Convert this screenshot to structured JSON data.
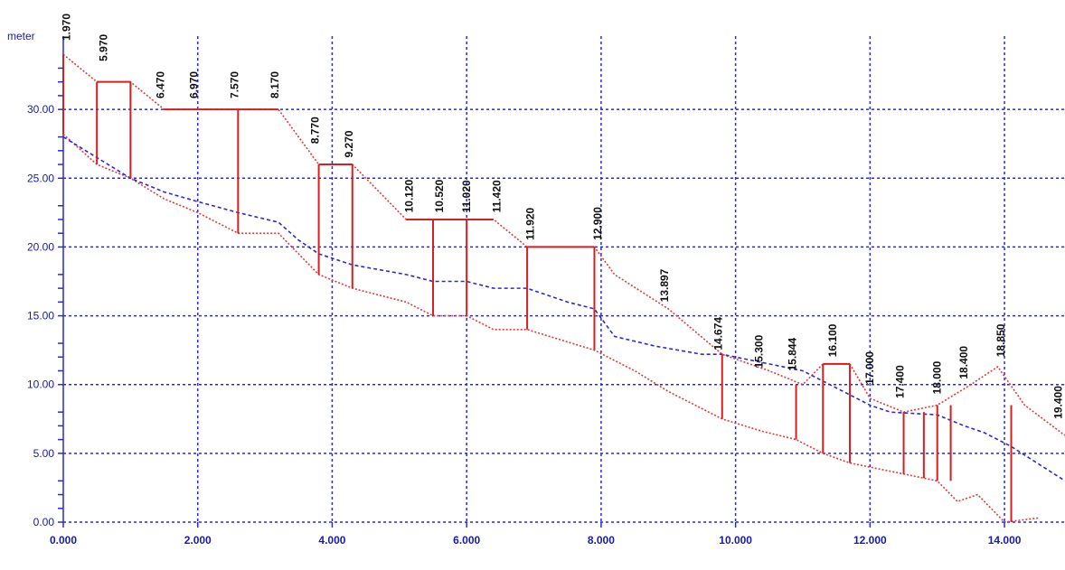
{
  "chart_data": {
    "type": "line",
    "y_unit_label": "meter",
    "xlim": [
      0,
      14.9
    ],
    "ylim": [
      0,
      35
    ],
    "x_ticks": [
      {
        "value": 0,
        "label": "0.000"
      },
      {
        "value": 2,
        "label": "2.000"
      },
      {
        "value": 4,
        "label": "4.000"
      },
      {
        "value": 6,
        "label": "6.000"
      },
      {
        "value": 8,
        "label": "8.000"
      },
      {
        "value": 10,
        "label": "10.000"
      },
      {
        "value": 12,
        "label": "12.000"
      },
      {
        "value": 14,
        "label": "14.000"
      }
    ],
    "y_ticks": [
      {
        "value": 0,
        "label": "0.00"
      },
      {
        "value": 5,
        "label": "5.00"
      },
      {
        "value": 10,
        "label": "10.00"
      },
      {
        "value": 15,
        "label": "15.00"
      },
      {
        "value": 20,
        "label": "20.00"
      },
      {
        "value": 25,
        "label": "25.00"
      },
      {
        "value": 30,
        "label": "30.00"
      }
    ],
    "y_minor_ticks": [
      1,
      2,
      3,
      6,
      7,
      8,
      11,
      12,
      13,
      16,
      17,
      18,
      21,
      22,
      23,
      26,
      27,
      28,
      31,
      32,
      33
    ],
    "grid": "dotted",
    "colors": {
      "grid": "#2a2ad4",
      "series_upper": "#e03a3a",
      "series_lower": "#e03a3a",
      "series_ground": "#2a2ad4",
      "walls": "#d42020",
      "label": "#111111"
    },
    "series": [
      {
        "values": [
          [
            0,
            34.0
          ],
          [
            0.5,
            32.0
          ],
          [
            1.0,
            32.0
          ],
          [
            1.5,
            30.0
          ],
          [
            2.0,
            30.0
          ],
          [
            2.6,
            30.0
          ],
          [
            3.2,
            30.0
          ],
          [
            3.8,
            26.0
          ],
          [
            4.3,
            26.0
          ],
          [
            5.1,
            22.0
          ],
          [
            5.5,
            22.0
          ],
          [
            6.0,
            22.0
          ],
          [
            6.4,
            22.0
          ],
          [
            6.9,
            20.0
          ],
          [
            7.9,
            20.0
          ],
          [
            8.2,
            18.0
          ],
          [
            9.0,
            15.5
          ],
          [
            9.8,
            12.2
          ],
          [
            10.5,
            11.0
          ],
          [
            11.0,
            10.0
          ],
          [
            11.3,
            11.5
          ],
          [
            11.7,
            11.5
          ],
          [
            12.0,
            9.0
          ],
          [
            12.5,
            8.0
          ],
          [
            13.0,
            8.5
          ],
          [
            13.5,
            10.0
          ],
          [
            13.9,
            11.3
          ],
          [
            14.3,
            8.5
          ],
          [
            14.9,
            6.3
          ]
        ]
      },
      {
        "values": [
          [
            0,
            28.2
          ],
          [
            0.5,
            26.0
          ],
          [
            1.0,
            25.0
          ],
          [
            1.5,
            23.5
          ],
          [
            2.0,
            22.5
          ],
          [
            2.6,
            21.0
          ],
          [
            3.2,
            21.0
          ],
          [
            3.8,
            18.0
          ],
          [
            4.3,
            17.0
          ],
          [
            5.1,
            16.0
          ],
          [
            5.5,
            15.0
          ],
          [
            6.0,
            15.0
          ],
          [
            6.4,
            14.0
          ],
          [
            6.9,
            14.0
          ],
          [
            7.9,
            12.5
          ],
          [
            8.5,
            11.0
          ],
          [
            9.0,
            9.5
          ],
          [
            9.8,
            7.5
          ],
          [
            10.4,
            6.6
          ],
          [
            10.9,
            6.0
          ],
          [
            11.3,
            5.0
          ],
          [
            11.7,
            4.3
          ],
          [
            12.0,
            4.0
          ],
          [
            12.5,
            3.5
          ],
          [
            13.0,
            3.0
          ],
          [
            13.3,
            1.5
          ],
          [
            13.6,
            2.0
          ],
          [
            14.0,
            0
          ],
          [
            14.5,
            0.3
          ]
        ]
      },
      {
        "values": [
          [
            0,
            28.0
          ],
          [
            1.0,
            25.0
          ],
          [
            1.5,
            24.0
          ],
          [
            2.0,
            23.3
          ],
          [
            2.6,
            22.5
          ],
          [
            3.2,
            21.8
          ],
          [
            3.5,
            20.5
          ],
          [
            3.8,
            19.5
          ],
          [
            4.3,
            18.7
          ],
          [
            5.1,
            18.0
          ],
          [
            5.5,
            17.5
          ],
          [
            6.0,
            17.5
          ],
          [
            6.4,
            17.0
          ],
          [
            6.9,
            17.0
          ],
          [
            7.5,
            16.0
          ],
          [
            7.9,
            15.5
          ],
          [
            8.2,
            13.5
          ],
          [
            8.8,
            12.8
          ],
          [
            9.5,
            12.2
          ],
          [
            9.8,
            12.2
          ],
          [
            10.5,
            11.5
          ],
          [
            11.0,
            11.0
          ],
          [
            11.6,
            9.5
          ],
          [
            12.0,
            8.5
          ],
          [
            12.3,
            8.0
          ],
          [
            13.0,
            7.8
          ],
          [
            13.4,
            7.0
          ],
          [
            13.7,
            6.5
          ],
          [
            14.1,
            5.5
          ],
          [
            14.9,
            3.0
          ]
        ]
      }
    ],
    "walls": [
      {
        "x": 0.0,
        "bottom": 28.2,
        "top": 34.0
      },
      {
        "x": 0.5,
        "bottom": 26.0,
        "top": 32.0
      },
      {
        "x": 1.0,
        "bottom": 25.0,
        "top": 32.0
      },
      {
        "x": 2.6,
        "bottom": 21.0,
        "top": 30.0
      },
      {
        "x": 3.8,
        "bottom": 18.0,
        "top": 26.0
      },
      {
        "x": 4.3,
        "bottom": 17.0,
        "top": 26.0
      },
      {
        "x": 5.5,
        "bottom": 15.0,
        "top": 22.0
      },
      {
        "x": 6.0,
        "bottom": 15.0,
        "top": 22.0
      },
      {
        "x": 6.9,
        "bottom": 14.0,
        "top": 20.0
      },
      {
        "x": 7.9,
        "bottom": 12.5,
        "top": 20.0
      },
      {
        "x": 9.8,
        "bottom": 7.5,
        "top": 12.2
      },
      {
        "x": 10.9,
        "bottom": 6.0,
        "top": 10.0
      },
      {
        "x": 11.3,
        "bottom": 5.0,
        "top": 11.5
      },
      {
        "x": 11.7,
        "bottom": 4.3,
        "top": 11.5
      },
      {
        "x": 12.5,
        "bottom": 3.5,
        "top": 8.0
      },
      {
        "x": 12.8,
        "bottom": 3.2,
        "top": 8.0
      },
      {
        "x": 13.0,
        "bottom": 3.0,
        "top": 8.5
      },
      {
        "x": 13.2,
        "bottom": 3.0,
        "top": 8.5
      },
      {
        "x": 14.1,
        "bottom": 0,
        "top": 8.5
      }
    ],
    "annotations": [
      {
        "text": "1.970",
        "x": 0.1,
        "y": 35.0
      },
      {
        "text": "5.970",
        "x": 0.65,
        "y": 33.5
      },
      {
        "text": "6.470",
        "x": 1.5,
        "y": 30.8
      },
      {
        "text": "6.970",
        "x": 2.0,
        "y": 30.8
      },
      {
        "text": "7.570",
        "x": 2.6,
        "y": 30.8
      },
      {
        "text": "8.170",
        "x": 3.2,
        "y": 30.8
      },
      {
        "text": "8.770",
        "x": 3.8,
        "y": 27.5
      },
      {
        "text": "9.270",
        "x": 4.3,
        "y": 26.5
      },
      {
        "text": "10.120",
        "x": 5.2,
        "y": 22.5
      },
      {
        "text": "10.520",
        "x": 5.65,
        "y": 22.5
      },
      {
        "text": "11.020",
        "x": 6.05,
        "y": 22.5
      },
      {
        "text": "11.420",
        "x": 6.5,
        "y": 22.5
      },
      {
        "text": "11.920",
        "x": 7.0,
        "y": 20.5
      },
      {
        "text": "12.900",
        "x": 8.0,
        "y": 20.5
      },
      {
        "text": "13.897",
        "x": 9.0,
        "y": 16.0
      },
      {
        "text": "14.674",
        "x": 9.8,
        "y": 12.5
      },
      {
        "text": "15.300",
        "x": 10.4,
        "y": 11.2
      },
      {
        "text": "15.844",
        "x": 10.9,
        "y": 11.0
      },
      {
        "text": "16.100",
        "x": 11.5,
        "y": 12.0
      },
      {
        "text": "17.000",
        "x": 12.05,
        "y": 10.0
      },
      {
        "text": "17.400",
        "x": 12.5,
        "y": 9.0
      },
      {
        "text": "18.000",
        "x": 13.05,
        "y": 9.3
      },
      {
        "text": "18.400",
        "x": 13.45,
        "y": 10.4
      },
      {
        "text": "18.850",
        "x": 14.0,
        "y": 12.0
      },
      {
        "text": "19.400",
        "x": 14.85,
        "y": 7.5
      }
    ]
  }
}
